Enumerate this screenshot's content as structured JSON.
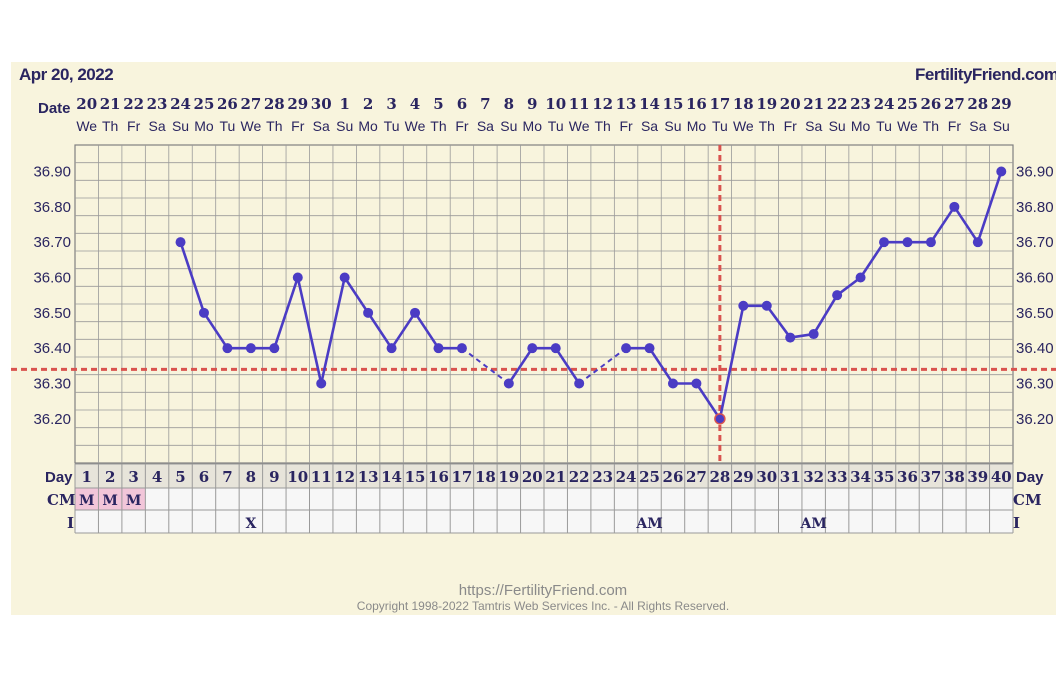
{
  "header": {
    "date": "Apr 20, 2022",
    "site": "FertilityFriend.com"
  },
  "labels": {
    "date_row": "Date",
    "day_row": "Day",
    "cm_row": "CM",
    "i_row": "I"
  },
  "colors": {
    "background": "#f8f4dd",
    "line": "#4b3cc4",
    "coverline": "#d9534f",
    "grid": "#9a9a9a",
    "cm_fill": "#f2c6d9"
  },
  "chart_data": {
    "type": "line",
    "x_label": "Day",
    "days": [
      1,
      2,
      3,
      4,
      5,
      6,
      7,
      8,
      9,
      10,
      11,
      12,
      13,
      14,
      15,
      16,
      17,
      18,
      19,
      20,
      21,
      22,
      23,
      24,
      25,
      26,
      27,
      28,
      29,
      30,
      31,
      32,
      33,
      34,
      35,
      36,
      37,
      38,
      39,
      40
    ],
    "dates": [
      "20",
      "21",
      "22",
      "23",
      "24",
      "25",
      "26",
      "27",
      "28",
      "29",
      "30",
      "1",
      "2",
      "3",
      "4",
      "5",
      "6",
      "7",
      "8",
      "9",
      "10",
      "11",
      "12",
      "13",
      "14",
      "15",
      "16",
      "17",
      "18",
      "19",
      "20",
      "21",
      "22",
      "23",
      "24",
      "25",
      "26",
      "27",
      "28",
      "29"
    ],
    "weekdays": [
      "We",
      "Th",
      "Fr",
      "Sa",
      "Su",
      "Mo",
      "Tu",
      "We",
      "Th",
      "Fr",
      "Sa",
      "Su",
      "Mo",
      "Tu",
      "We",
      "Th",
      "Fr",
      "Sa",
      "Su",
      "Mo",
      "Tu",
      "We",
      "Th",
      "Fr",
      "Sa",
      "Su",
      "Mo",
      "Tu",
      "We",
      "Th",
      "Fr",
      "Sa",
      "Su",
      "Mo",
      "Tu",
      "We",
      "Th",
      "Fr",
      "Sa",
      "Su"
    ],
    "temperatures": [
      null,
      null,
      null,
      null,
      36.7,
      36.5,
      36.4,
      36.4,
      36.4,
      36.6,
      36.3,
      36.6,
      36.5,
      36.4,
      36.5,
      36.4,
      36.4,
      null,
      36.3,
      36.4,
      36.4,
      36.3,
      null,
      36.4,
      36.4,
      36.3,
      36.3,
      36.2,
      36.52,
      36.52,
      36.43,
      36.44,
      36.55,
      36.6,
      36.7,
      36.7,
      36.7,
      36.8,
      36.7,
      36.9
    ],
    "y_ticks": [
      "36.90",
      "36.80",
      "36.70",
      "36.60",
      "36.50",
      "36.40",
      "36.30",
      "36.20"
    ],
    "ylim": [
      36.075,
      36.975
    ],
    "coverline": 36.34,
    "ovulation_day": 28,
    "cervical_mucus": {
      "1": "M",
      "2": "M",
      "3": "M"
    },
    "intercourse": {
      "8": "X",
      "25": "AM",
      "32": "AM"
    },
    "grid": true
  },
  "footer": {
    "url": "https://FertilityFriend.com",
    "copyright": "Copyright 1998-2022 Tamtris Web Services Inc. - All Rights Reserved."
  }
}
